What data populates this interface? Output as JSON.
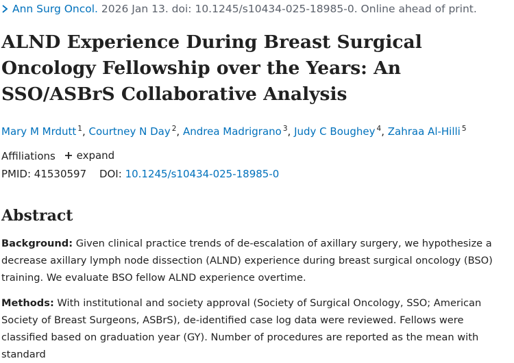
{
  "citation": {
    "journal": "Ann Surg Oncol.",
    "details": "2026 Jan 13. doi: 10.1245/s10434-025-18985-0. Online ahead of print."
  },
  "title": "ALND Experience During Breast Surgical Oncology Fellowship over the Years: An SSO/ASBrS Collaborative Analysis",
  "authors": [
    {
      "name": "Mary M Mrdutt",
      "sup": "1"
    },
    {
      "name": "Courtney N Day",
      "sup": "2"
    },
    {
      "name": "Andrea Madrigrano",
      "sup": "3"
    },
    {
      "name": "Judy C Boughey",
      "sup": "4"
    },
    {
      "name": "Zahraa Al-Hilli",
      "sup": "5"
    }
  ],
  "affiliations": {
    "label": "Affiliations",
    "expand_label": "expand"
  },
  "ids": {
    "pmid_label": "PMID:",
    "pmid": "41530597",
    "doi_label": "DOI:",
    "doi": "10.1245/s10434-025-18985-0"
  },
  "abstract": {
    "heading": "Abstract",
    "paragraphs": [
      {
        "label": "Background:",
        "text": " Given clinical practice trends of de-escalation of axillary surgery, we hypothesize a decrease axillary lymph node dissection (ALND) experience during breast surgical oncology (BSO) training. We evaluate BSO fellow ALND experience overtime."
      },
      {
        "label": "Methods:",
        "text": " With institutional and society approval (Society of Surgical Oncology, SSO; American Society of Breast Surgeons, ASBrS), de-identified case log data were reviewed. Fellows were classified based on graduation year (GY). Number of procedures are reported as the mean with standard"
      }
    ]
  },
  "colors": {
    "link": "#0071bc",
    "text": "#212121",
    "muted": "#5b616b"
  }
}
